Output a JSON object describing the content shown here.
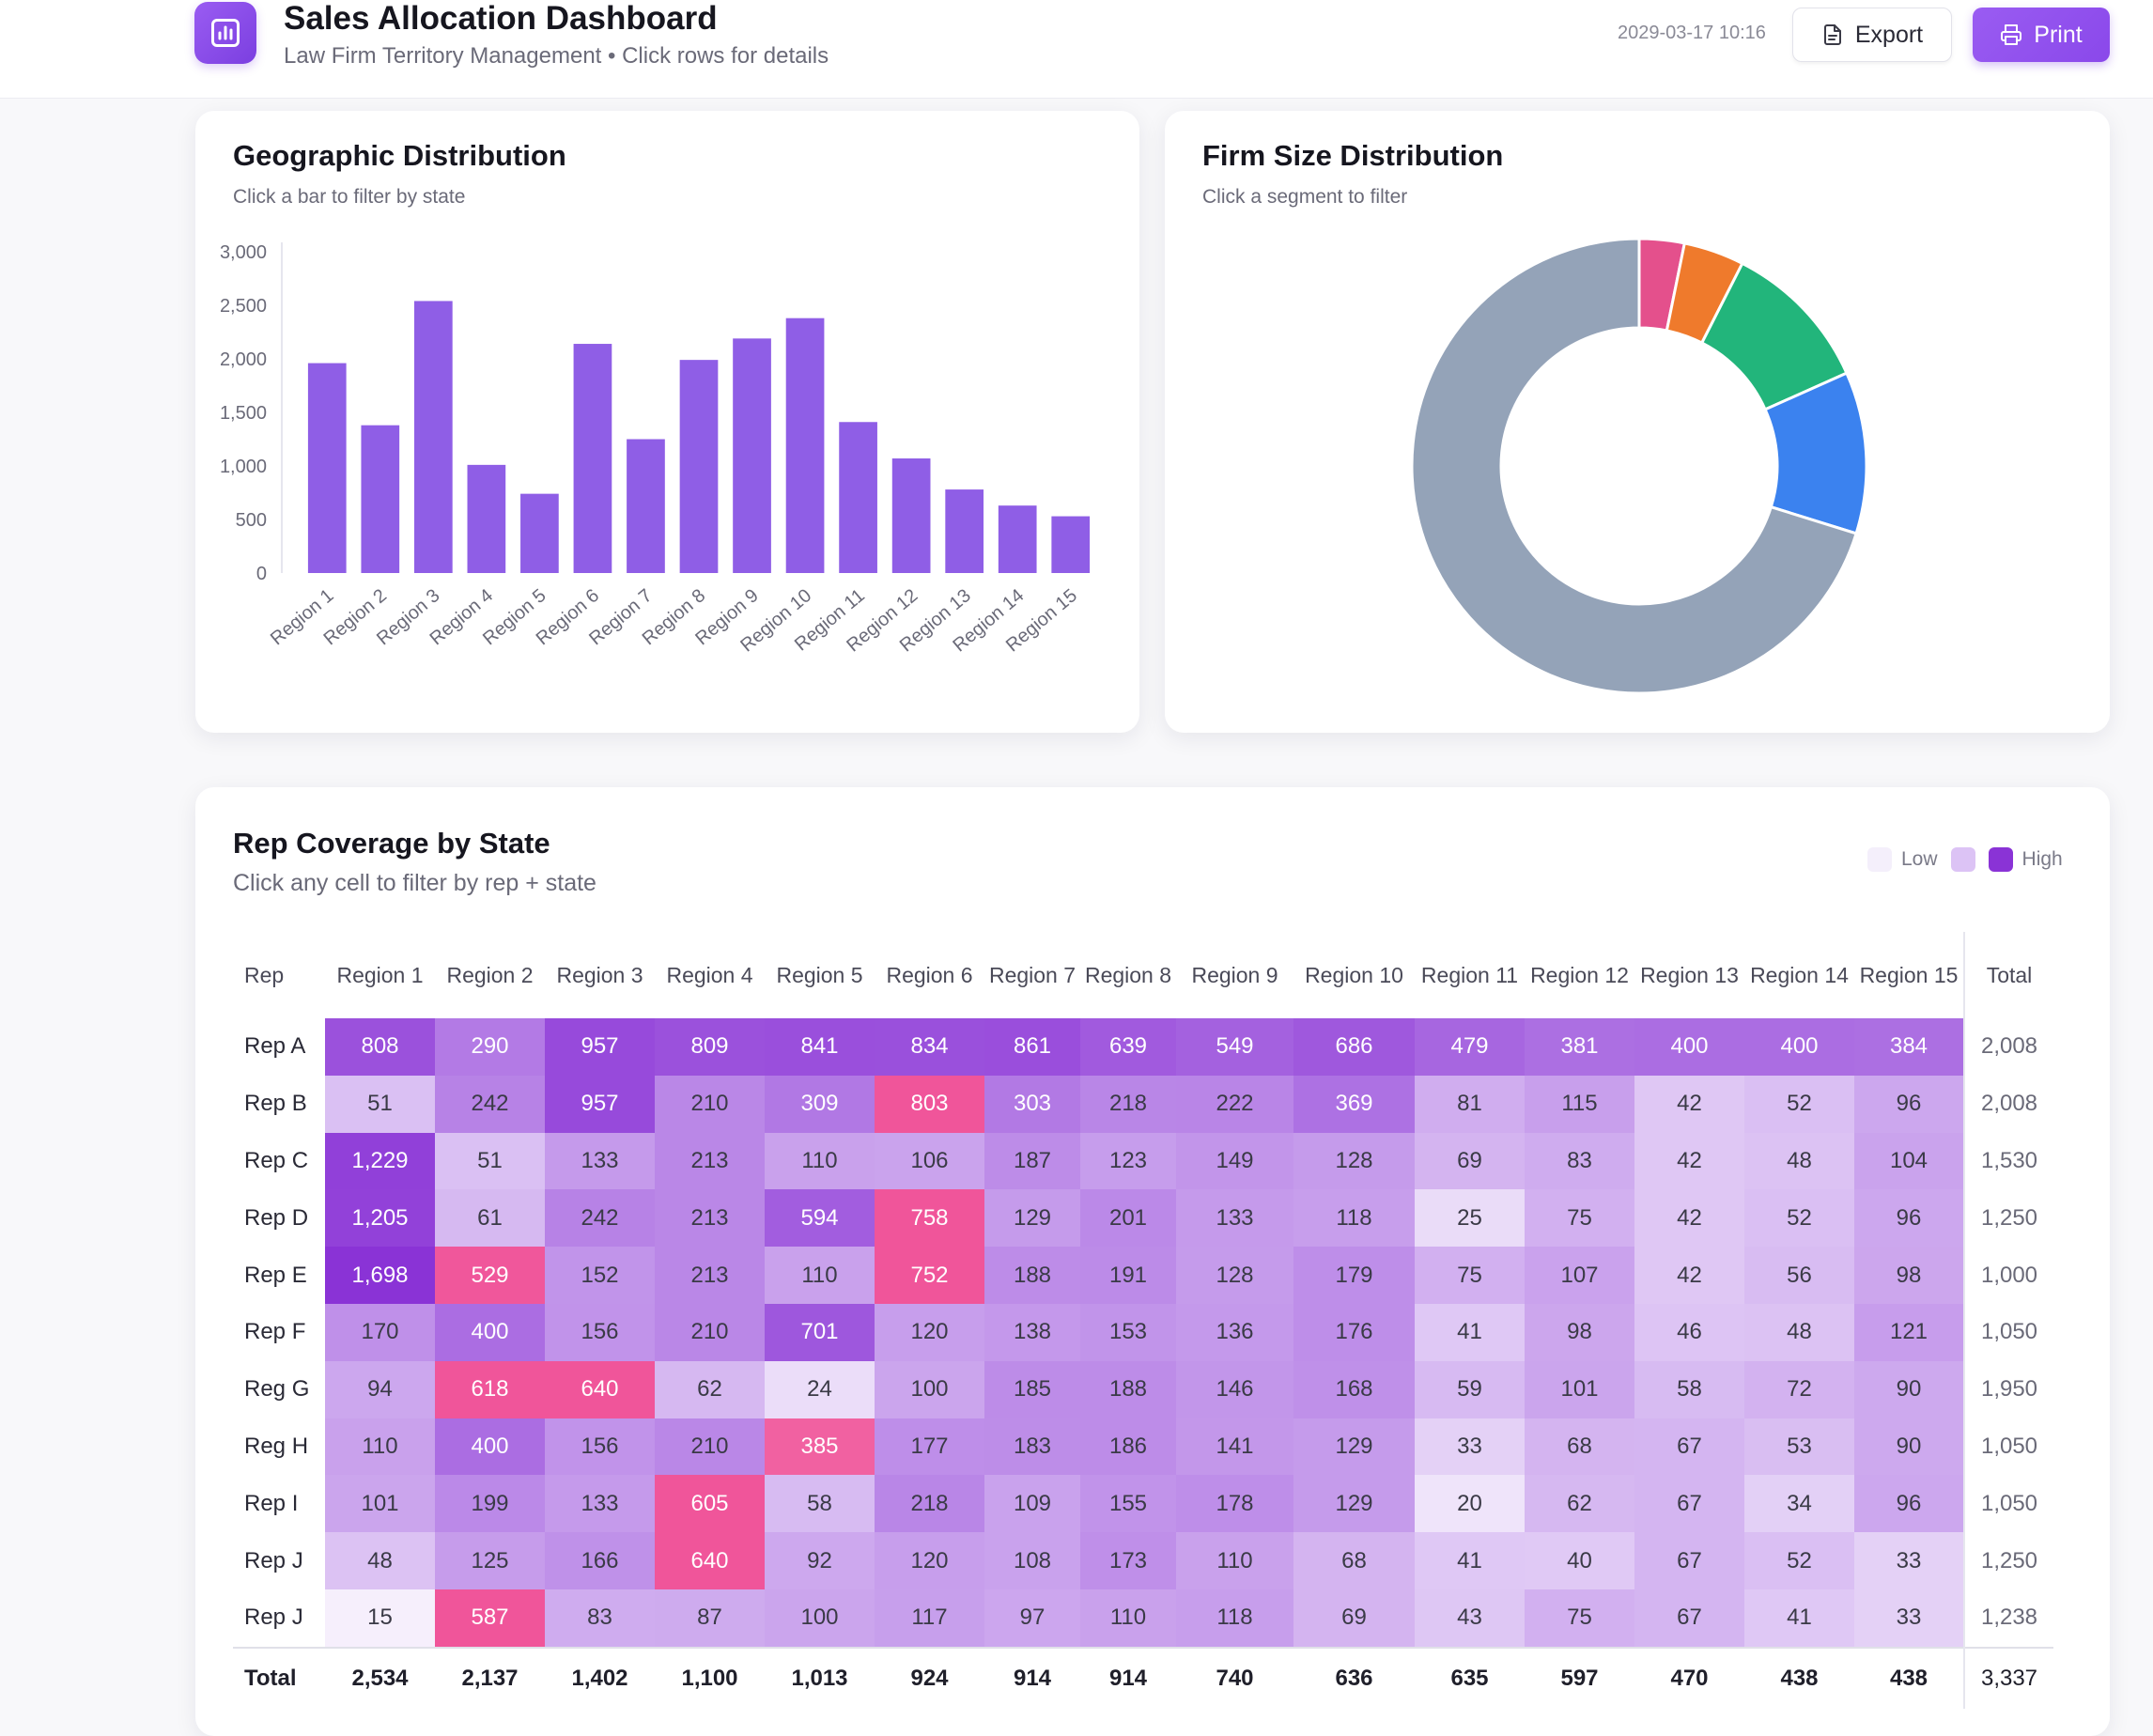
{
  "header": {
    "title": "Sales Allocation Dashboard",
    "subtitle": "Law Firm Territory Management • Click rows for details",
    "timestamp": "2029-03-17 10:16",
    "export_label": "Export",
    "print_label": "Print",
    "logo_icon": "bar-chart-icon"
  },
  "geo": {
    "title": "Geographic Distribution",
    "subtitle": "Click a bar to filter by state"
  },
  "firm": {
    "title": "Firm Size Distribution",
    "subtitle": "Click a segment to filter"
  },
  "heatmap": {
    "title": "Rep Coverage by State",
    "subtitle": "Click any cell to filter by rep + state",
    "legend_low": "Low",
    "legend_high": "High",
    "rep_header": "Rep",
    "total_header": "Total",
    "columns": [
      "Region 1",
      "Region 2",
      "Region 3",
      "Region 4",
      "Region 5",
      "Region 6",
      "Region 7",
      "Region 8",
      "Region 9",
      "Region 10",
      "Region 11",
      "Region 12",
      "Region 13",
      "Region 14",
      "Region 15"
    ],
    "rows": [
      {
        "rep": "Rep A",
        "cells": [
          "808",
          "290",
          "957",
          "809",
          "841",
          "834",
          "861",
          "639",
          "549",
          "686",
          "479",
          "381",
          "400",
          "400",
          "384"
        ],
        "total": "2,008"
      },
      {
        "rep": "Rep B",
        "cells": [
          "51",
          "242",
          "957",
          "210",
          "309",
          "803",
          "303",
          "218",
          "222",
          "369",
          "81",
          "115",
          "42",
          "52",
          "96"
        ],
        "total": "2,008"
      },
      {
        "rep": "Rep C",
        "cells": [
          "1,229",
          "51",
          "133",
          "213",
          "110",
          "106",
          "187",
          "123",
          "149",
          "128",
          "69",
          "83",
          "42",
          "48",
          "104"
        ],
        "total": "1,530"
      },
      {
        "rep": "Rep D",
        "cells": [
          "1,205",
          "61",
          "242",
          "213",
          "594",
          "758",
          "129",
          "201",
          "133",
          "118",
          "25",
          "75",
          "42",
          "52",
          "96"
        ],
        "total": "1,250"
      },
      {
        "rep": "Rep E",
        "cells": [
          "1,698",
          "529",
          "152",
          "213",
          "110",
          "752",
          "188",
          "191",
          "128",
          "179",
          "75",
          "107",
          "42",
          "56",
          "98"
        ],
        "total": "1,000"
      },
      {
        "rep": "Rep F",
        "cells": [
          "170",
          "400",
          "156",
          "210",
          "701",
          "120",
          "138",
          "153",
          "136",
          "176",
          "41",
          "98",
          "46",
          "48",
          "121"
        ],
        "total": "1,050"
      },
      {
        "rep": "Reg G",
        "cells": [
          "94",
          "618",
          "640",
          "62",
          "24",
          "100",
          "185",
          "188",
          "146",
          "168",
          "59",
          "101",
          "58",
          "72",
          "90"
        ],
        "total": "1,950"
      },
      {
        "rep": "Reg H",
        "cells": [
          "110",
          "400",
          "156",
          "210",
          "385",
          "177",
          "183",
          "186",
          "141",
          "129",
          "33",
          "68",
          "67",
          "53",
          "90"
        ],
        "total": "1,050"
      },
      {
        "rep": "Rep I",
        "cells": [
          "101",
          "199",
          "133",
          "605",
          "58",
          "218",
          "109",
          "155",
          "178",
          "129",
          "20",
          "62",
          "67",
          "34",
          "96"
        ],
        "total": "1,050"
      },
      {
        "rep": "Rep J",
        "cells": [
          "48",
          "125",
          "166",
          "640",
          "92",
          "120",
          "108",
          "173",
          "110",
          "68",
          "41",
          "40",
          "67",
          "52",
          "33"
        ],
        "total": "1,250"
      },
      {
        "rep": "Rep J",
        "cells": [
          "15",
          "587",
          "83",
          "87",
          "100",
          "117",
          "97",
          "110",
          "118",
          "69",
          "43",
          "75",
          "67",
          "41",
          "33"
        ],
        "total": "1,238"
      }
    ],
    "totals_label": "Total",
    "totals": [
      "2,534",
      "2,137",
      "1,402",
      "1,100",
      "1,013",
      "924",
      "914",
      "914",
      "740",
      "636",
      "635",
      "597",
      "470",
      "438",
      "438"
    ],
    "grand_total": "3,337"
  },
  "colors": {
    "accent": "#8a4ae8",
    "bar": "#8f5ee6",
    "heat_low": "#f7f2fd",
    "heat_high": "#8a33d6",
    "heat_pink": "#f0559a"
  },
  "chart_data": [
    {
      "type": "bar",
      "title": "Geographic Distribution",
      "categories": [
        "Region 1",
        "Region 2",
        "Region 3",
        "Region 4",
        "Region 5",
        "Region 6",
        "Region 7",
        "Region 8",
        "Region 9",
        "Region 10",
        "Region 11",
        "Region 12",
        "Region 13",
        "Region 14",
        "Region 15"
      ],
      "values": [
        1960,
        1380,
        2540,
        1010,
        740,
        2140,
        1250,
        1990,
        2190,
        2380,
        1410,
        1070,
        780,
        630,
        530
      ],
      "ylim": [
        0,
        3000
      ],
      "yticks": [
        0,
        500,
        1000,
        1500,
        2000,
        2500,
        3000
      ],
      "ytick_labels": [
        "0",
        "500",
        "1,000",
        "1,500",
        "2,000",
        "2,500",
        "3,000"
      ],
      "grid": false,
      "color": "#8f5ee6"
    },
    {
      "type": "pie",
      "title": "Firm Size Distribution",
      "donut": true,
      "values": [
        3.2,
        4.3,
        10.8,
        11.5,
        70.2
      ],
      "colors": [
        "#e4508c",
        "#ef7a2c",
        "#22b57b",
        "#3b82ef",
        "#94a3b8"
      ]
    }
  ]
}
